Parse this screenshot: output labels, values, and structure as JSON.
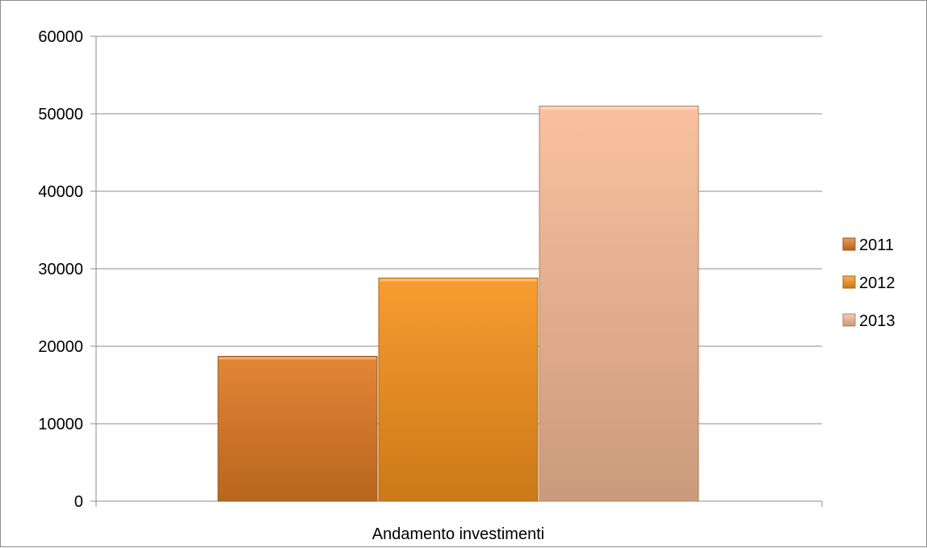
{
  "chart_data": {
    "type": "bar",
    "title": "",
    "xlabel": "",
    "ylabel": "",
    "categories": [
      "Andamento investimenti"
    ],
    "series": [
      {
        "name": "2011",
        "values": [
          18700
        ],
        "color": "#e07b24"
      },
      {
        "name": "2012",
        "values": [
          28800
        ],
        "color": "#f7931e"
      },
      {
        "name": "2013",
        "values": [
          51000
        ],
        "color": "#f8bc97"
      }
    ],
    "ylim": [
      0,
      60000
    ],
    "yticks": [
      0,
      10000,
      20000,
      30000,
      40000,
      50000,
      60000
    ],
    "grid": true,
    "legend_position": "right"
  }
}
